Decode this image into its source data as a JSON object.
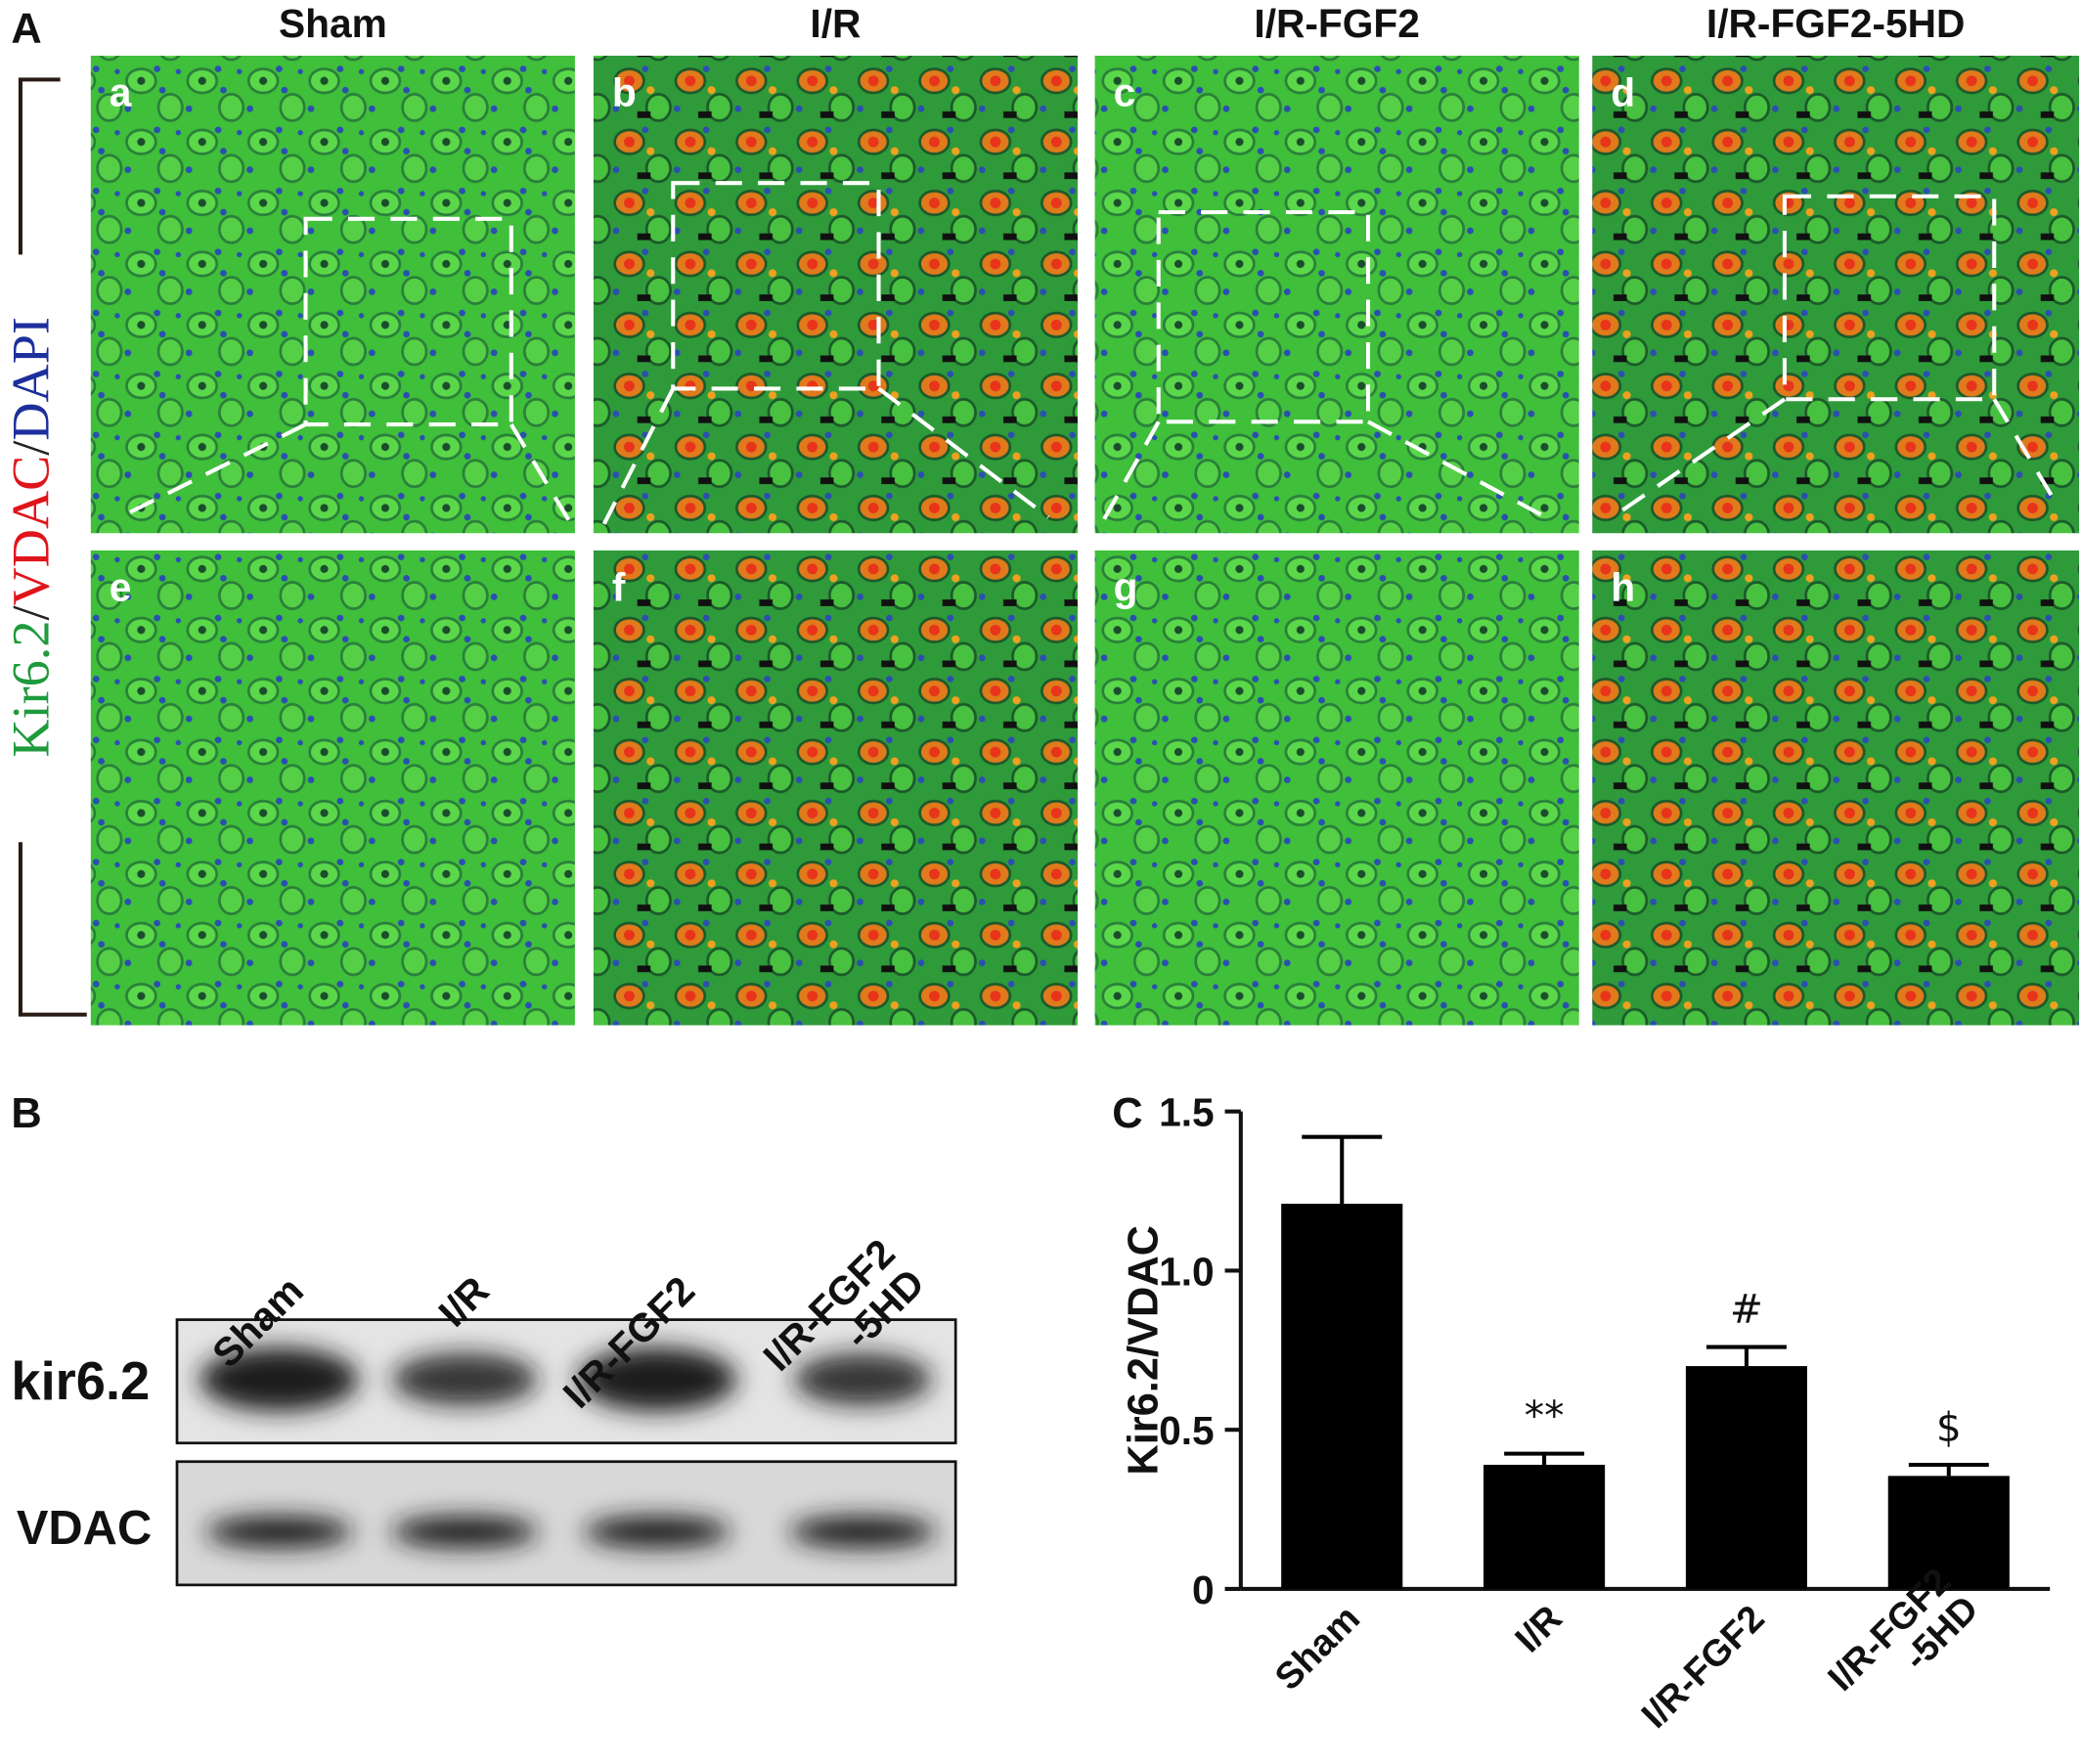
{
  "panel_a": {
    "letter": "A",
    "columns": [
      "Sham",
      "I/R",
      "I/R-FGF2",
      "I/R-FGF2-5HD"
    ],
    "panel_letters": [
      "a",
      "b",
      "c",
      "d",
      "e",
      "f",
      "g",
      "h"
    ],
    "stain_label": [
      {
        "text": "Kir6.2",
        "color": "#1f9a3c"
      },
      {
        "text": "/",
        "color": "#222222"
      },
      {
        "text": "VDAC",
        "color": "#e0141b"
      },
      {
        "text": "/",
        "color": "#222222"
      },
      {
        "text": "DAPI",
        "color": "#1c2f9c"
      }
    ]
  },
  "panel_b": {
    "letter": "B",
    "lanes": [
      "Sham",
      "I/R",
      "I/R-FGF2",
      "I/R-FGF2\n-5HD"
    ],
    "rows": [
      "kir6.2",
      "VDAC"
    ]
  },
  "chart_data": {
    "type": "bar",
    "letter": "C",
    "y_label": "Kir6.2/VDAC",
    "categories": [
      "Sham",
      "I/R",
      "I/R-FGF2",
      "I/R-FGF2\n-5HD"
    ],
    "values": [
      1.21,
      0.39,
      0.7,
      0.355
    ],
    "errors": [
      0.21,
      0.035,
      0.06,
      0.035
    ],
    "annotations": [
      null,
      "**",
      "#",
      "$"
    ],
    "color": "#000000",
    "ylim": [
      0,
      1.5
    ],
    "yticks": [
      0,
      0.5,
      {
        "value": 1,
        "label": "1.0"
      },
      1.5
    ]
  }
}
